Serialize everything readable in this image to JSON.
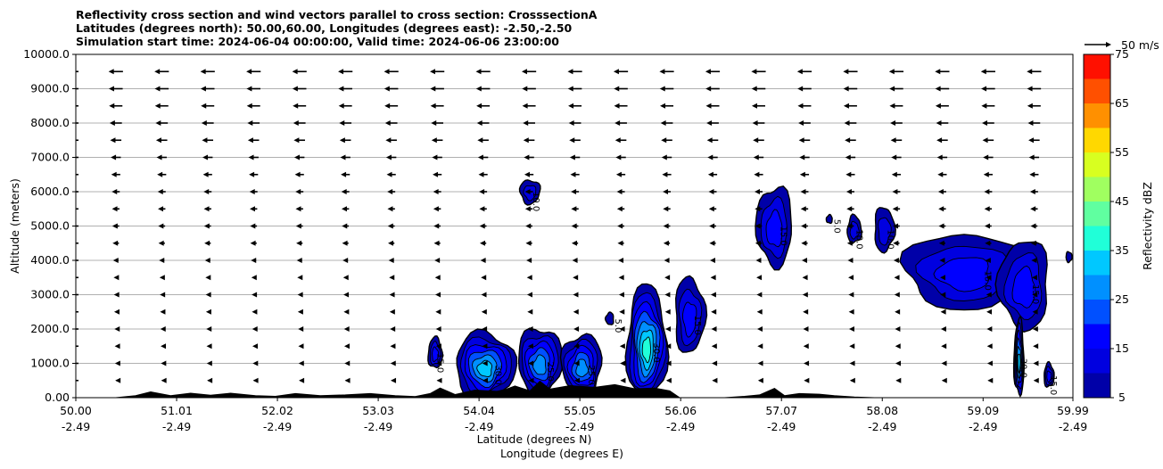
{
  "chart_data": {
    "type": "contour",
    "title_lines": [
      "Reflectivity cross section and wind vectors parallel to cross section: CrosssectionA",
      "Latitudes (degrees north): 50.00,60.00, Longitudes (degrees east): -2.50,-2.50",
      "Simulation start time: 2024-06-04 00:00:00, Valid time: 2024-06-06 23:00:00"
    ],
    "ylabel": "Altitude (meters)",
    "xlabel_lat": "Latitude (degrees N)",
    "xlabel_lon": "Longitude (degrees E)",
    "ylim": [
      0,
      10000
    ],
    "y_ticks": [
      "0.00",
      "1000.0",
      "2000.0",
      "3000.0",
      "4000.0",
      "5000.0",
      "6000.0",
      "7000.0",
      "8000.0",
      "9000.0",
      "10000.0"
    ],
    "y_tick_values": [
      0,
      1000,
      2000,
      3000,
      4000,
      5000,
      6000,
      7000,
      8000,
      9000,
      10000
    ],
    "xlim": [
      50.0,
      59.99
    ],
    "x_tick_lat": [
      "50.00",
      "51.01",
      "52.02",
      "53.03",
      "54.04",
      "55.05",
      "56.06",
      "57.07",
      "58.08",
      "59.09",
      "59.99"
    ],
    "x_tick_lon": [
      "-2.49",
      "-2.49",
      "-2.49",
      "-2.49",
      "-2.49",
      "-2.49",
      "-2.49",
      "-2.49",
      "-2.49",
      "-2.49",
      "-2.49"
    ],
    "x_tick_values": [
      50.0,
      51.01,
      52.02,
      53.03,
      54.04,
      55.05,
      56.06,
      57.07,
      58.08,
      59.09,
      59.99
    ],
    "grid": "horizontal",
    "colorbar": {
      "label": "Reflectivity dBZ",
      "min": 5,
      "max": 75,
      "tick_labels": [
        "5",
        "15",
        "25",
        "35",
        "45",
        "55",
        "65",
        "75"
      ],
      "tick_values": [
        5,
        15,
        25,
        35,
        45,
        55,
        65,
        75
      ],
      "levels": [
        5,
        10,
        15,
        20,
        25,
        30,
        35,
        40,
        45,
        50,
        55,
        60,
        65,
        70,
        75
      ],
      "colors": [
        "#0000a8",
        "#0000e0",
        "#0000ff",
        "#0050ff",
        "#0090ff",
        "#00c8ff",
        "#20ffd8",
        "#60ffa0",
        "#a0ff60",
        "#d8ff20",
        "#ffd800",
        "#ff9000",
        "#ff5000",
        "#ff1000",
        "#a80000"
      ]
    },
    "wind_key": {
      "label": "50 m/s",
      "speed": 50
    },
    "wind_vectors": {
      "x_columns": [
        50.4,
        50.86,
        51.32,
        51.78,
        52.24,
        52.7,
        53.16,
        53.62,
        54.08,
        54.54,
        55.0,
        55.46,
        55.92,
        56.38,
        56.84,
        57.3,
        57.76,
        58.22,
        58.68,
        59.14,
        59.6
      ],
      "levels": [
        {
          "z": 500,
          "u": -2
        },
        {
          "z": 1000,
          "u": -3
        },
        {
          "z": 1500,
          "u": -4
        },
        {
          "z": 2000,
          "u": -5
        },
        {
          "z": 2500,
          "u": -6
        },
        {
          "z": 3000,
          "u": -7
        },
        {
          "z": 3500,
          "u": -8
        },
        {
          "z": 4000,
          "u": -10
        },
        {
          "z": 4500,
          "u": -12
        },
        {
          "z": 5000,
          "u": -13
        },
        {
          "z": 5500,
          "u": -14
        },
        {
          "z": 6000,
          "u": -15
        },
        {
          "z": 6500,
          "u": -17
        },
        {
          "z": 7000,
          "u": -19
        },
        {
          "z": 7500,
          "u": -21
        },
        {
          "z": 8000,
          "u": -23
        },
        {
          "z": 8500,
          "u": -25
        },
        {
          "z": 9000,
          "u": -26
        },
        {
          "z": 9500,
          "u": -27
        }
      ]
    },
    "cells": [
      {
        "x": 53.6,
        "z": 1300,
        "rx": 0.07,
        "rz": 450,
        "max": 15
      },
      {
        "x": 54.1,
        "z": 950,
        "rx": 0.3,
        "rz": 950,
        "max": 30
      },
      {
        "x": 54.65,
        "z": 1050,
        "rx": 0.22,
        "rz": 1000,
        "max": 25
      },
      {
        "x": 55.07,
        "z": 950,
        "rx": 0.2,
        "rz": 900,
        "max": 25
      },
      {
        "x": 55.35,
        "z": 2300,
        "rx": 0.04,
        "rz": 180,
        "max": 5
      },
      {
        "x": 55.72,
        "z": 1600,
        "rx": 0.2,
        "rz": 1650,
        "max": 35
      },
      {
        "x": 56.15,
        "z": 2400,
        "rx": 0.15,
        "rz": 1100,
        "max": 15
      },
      {
        "x": 54.55,
        "z": 6000,
        "rx": 0.1,
        "rz": 350,
        "max": 10
      },
      {
        "x": 57.0,
        "z": 5000,
        "rx": 0.18,
        "rz": 1150,
        "max": 15
      },
      {
        "x": 57.55,
        "z": 5200,
        "rx": 0.03,
        "rz": 120,
        "max": 5
      },
      {
        "x": 57.8,
        "z": 4900,
        "rx": 0.07,
        "rz": 400,
        "max": 10
      },
      {
        "x": 58.1,
        "z": 4900,
        "rx": 0.1,
        "rz": 650,
        "max": 10
      },
      {
        "x": 58.9,
        "z": 3700,
        "rx": 0.6,
        "rz": 1100,
        "max": 15
      },
      {
        "x": 59.5,
        "z": 3300,
        "rx": 0.25,
        "rz": 1300,
        "max": 15
      },
      {
        "x": 59.45,
        "z": 1150,
        "rx": 0.05,
        "rz": 1100,
        "max": 30
      },
      {
        "x": 59.75,
        "z": 650,
        "rx": 0.05,
        "rz": 350,
        "max": 15
      },
      {
        "x": 59.95,
        "z": 4100,
        "rx": 0.03,
        "rz": 150,
        "max": 5
      }
    ],
    "terrain": [
      [
        50.0,
        0
      ],
      [
        50.4,
        0
      ],
      [
        50.6,
        60
      ],
      [
        50.75,
        170
      ],
      [
        50.95,
        60
      ],
      [
        51.15,
        130
      ],
      [
        51.35,
        70
      ],
      [
        51.55,
        130
      ],
      [
        51.8,
        60
      ],
      [
        52.0,
        40
      ],
      [
        52.2,
        120
      ],
      [
        52.45,
        60
      ],
      [
        52.7,
        80
      ],
      [
        52.95,
        120
      ],
      [
        53.2,
        60
      ],
      [
        53.4,
        30
      ],
      [
        53.55,
        120
      ],
      [
        53.65,
        280
      ],
      [
        53.8,
        90
      ],
      [
        54.0,
        220
      ],
      [
        54.25,
        180
      ],
      [
        54.4,
        340
      ],
      [
        54.55,
        200
      ],
      [
        54.65,
        480
      ],
      [
        54.75,
        250
      ],
      [
        54.95,
        350
      ],
      [
        55.2,
        300
      ],
      [
        55.4,
        380
      ],
      [
        55.6,
        260
      ],
      [
        55.8,
        280
      ],
      [
        55.95,
        200
      ],
      [
        56.05,
        0
      ],
      [
        56.5,
        0
      ],
      [
        56.7,
        40
      ],
      [
        56.85,
        80
      ],
      [
        57.0,
        270
      ],
      [
        57.1,
        60
      ],
      [
        57.25,
        120
      ],
      [
        57.45,
        100
      ],
      [
        57.6,
        60
      ],
      [
        57.8,
        20
      ],
      [
        58.0,
        0
      ],
      [
        59.99,
        0
      ]
    ],
    "contour_labels": [
      "5.0",
      "10.0",
      "15.0",
      "20.0",
      "25.0",
      "30.0"
    ]
  }
}
